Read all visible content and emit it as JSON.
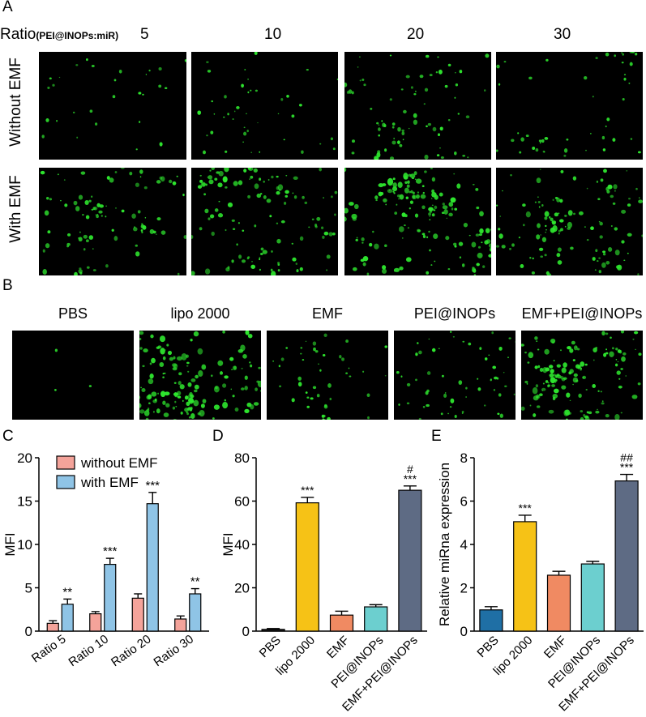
{
  "panel_A": {
    "label": "A",
    "ratio_label_main": "Ratio",
    "ratio_label_sub": "(PEI@INOPs:miR)",
    "columns": [
      "5",
      "10",
      "20",
      "30"
    ],
    "rows": [
      "Without EMF",
      "With EMF"
    ],
    "cell_density": [
      [
        0.25,
        0.4,
        0.7,
        0.45
      ],
      [
        0.85,
        1.1,
        1.5,
        1.05
      ]
    ]
  },
  "panel_B": {
    "label": "B",
    "columns": [
      "PBS",
      "lipo 2000",
      "EMF",
      "PEI@INOPs",
      "EMF+PEI@INOPs"
    ],
    "cell_density": [
      0.05,
      1.4,
      0.45,
      0.55,
      1.3
    ]
  },
  "panel_C": {
    "label": "C"
  },
  "panel_D": {
    "label": "D"
  },
  "panel_E": {
    "label": "E"
  },
  "colors": {
    "fluorescence": "#2ee62e",
    "without_emf": "#f4a39a",
    "with_emf": "#8fc4e6",
    "pbs_d": "#1f1f1f",
    "lipo": "#f6c216",
    "emf": "#f08a62",
    "pei": "#6ccfcf",
    "emf_pei": "#5e6b84",
    "pbs_e": "#1f6fa5"
  },
  "chart_data": [
    {
      "type": "bar",
      "id": "C",
      "categories": [
        "Ratio 5",
        "Ratio 10",
        "Ratio 20",
        "Ratio 30"
      ],
      "series": [
        {
          "name": "without EMF",
          "values": [
            0.9,
            2.0,
            3.8,
            1.4
          ],
          "errors": [
            0.3,
            0.25,
            0.5,
            0.35
          ]
        },
        {
          "name": "with EMF",
          "values": [
            3.1,
            7.7,
            14.7,
            4.3
          ],
          "errors": [
            0.6,
            0.7,
            1.3,
            0.6
          ]
        }
      ],
      "annotations": [
        "**",
        "***",
        "***",
        "**"
      ],
      "xlabel": "",
      "ylabel": "MFI",
      "ylim": [
        0,
        20
      ],
      "yticks": [
        0,
        5,
        10,
        15,
        20
      ],
      "legend": "top-left"
    },
    {
      "type": "bar",
      "id": "D",
      "categories": [
        "PBS",
        "lipo 2000",
        "EMF",
        "PEI@INOPs",
        "EMF+PEI@INOPs"
      ],
      "values": [
        0.8,
        59.2,
        7.4,
        11.2,
        65.0
      ],
      "errors": [
        0.4,
        2.5,
        1.8,
        1.0,
        2.0
      ],
      "annotations": [
        [
          ""
        ],
        [
          "***"
        ],
        [
          ""
        ],
        [
          ""
        ],
        [
          "#",
          "***"
        ]
      ],
      "xlabel": "",
      "ylabel": "MFI",
      "ylim": [
        0,
        80
      ],
      "yticks": [
        0,
        20,
        40,
        60,
        80
      ]
    },
    {
      "type": "bar",
      "id": "E",
      "categories": [
        "PBS",
        "lipo 2000",
        "EMF",
        "PEI@INOPs",
        "EMF+PEI@INOPs"
      ],
      "values": [
        0.98,
        5.05,
        2.58,
        3.1,
        6.93
      ],
      "errors": [
        0.15,
        0.3,
        0.18,
        0.12,
        0.3
      ],
      "annotations": [
        [
          ""
        ],
        [
          "***"
        ],
        [
          ""
        ],
        [
          ""
        ],
        [
          "##",
          "***"
        ]
      ],
      "xlabel": "",
      "ylabel": "Relative miRna expression",
      "ylim": [
        0,
        8
      ],
      "yticks": [
        0,
        2,
        4,
        6,
        8
      ]
    }
  ]
}
